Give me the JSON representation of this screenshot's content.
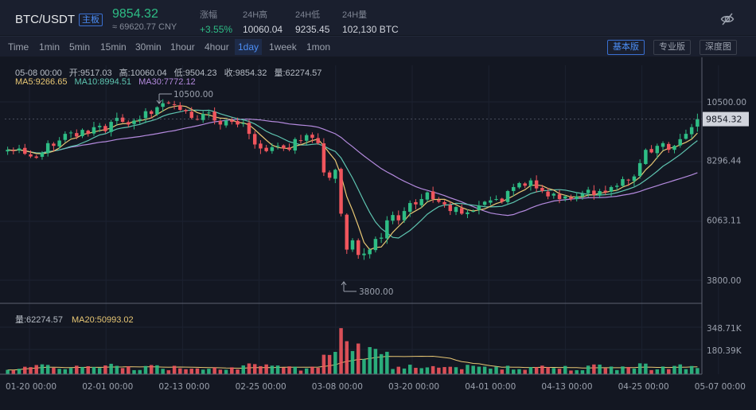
{
  "header": {
    "pair": "BTC/USDT",
    "tag": "主板",
    "price": "9854.32",
    "cny": "≈ 69620.77 CNY",
    "stats": [
      {
        "label": "涨幅",
        "value": "+3.55%",
        "up": true
      },
      {
        "label": "24H高",
        "value": "10060.04",
        "up": false
      },
      {
        "label": "24H低",
        "value": "9235.45",
        "up": false
      },
      {
        "label": "24H量",
        "value": "102,130 BTC",
        "up": false
      }
    ],
    "eye_icon": "eye-off-icon"
  },
  "toolbar": {
    "timeframes": [
      "Time",
      "1min",
      "5min",
      "15min",
      "30min",
      "1hour",
      "4hour",
      "1day",
      "1week",
      "1mon"
    ],
    "active": "1day",
    "views": [
      "基本版",
      "专业版",
      "深度图"
    ],
    "active_view": "基本版"
  },
  "info": {
    "date": "05-08 00:00",
    "open": "开:9517.03",
    "high": "高:10060.04",
    "low": "低:9504.23",
    "close": "收:9854.32",
    "vol": "量:62274.57",
    "ma5": "MA5:9266.65",
    "ma10": "MA10:8994.51",
    "ma30": "MA30:7772.12",
    "vol_label": "量:62274.57",
    "vol_ma": "MA20:50993.02"
  },
  "colors": {
    "up": "#2ebd85",
    "down": "#f0555d",
    "ma5": "#e8c774",
    "ma10": "#5ec4b0",
    "ma30": "#b48ade",
    "vol_ma": "#e8c774"
  },
  "chart_data": {
    "type": "candlestick",
    "y_ticks": [
      10500,
      8296.44,
      6063.11,
      3800
    ],
    "y_tick_labels": [
      "10500.00",
      "8296.44",
      "6063.11",
      "3800.00"
    ],
    "volume_ticks_labels": [
      "348.71K",
      "180.39K"
    ],
    "volume_ticks": [
      348710,
      180390
    ],
    "x_labels": [
      "01-20 00:00",
      "02-01 00:00",
      "02-13 00:00",
      "02-25 00:00",
      "03-08 00:00",
      "03-20 00:00",
      "04-01 00:00",
      "04-13 00:00",
      "04-25 00:00",
      "05-07 00:00"
    ],
    "last_price": "9854.32",
    "high_annotation": "10500.00",
    "low_annotation": "3800.00",
    "closes": [
      8700,
      8650,
      8750,
      8550,
      8450,
      8400,
      8600,
      8950,
      8850,
      9050,
      9300,
      9350,
      9200,
      9450,
      9300,
      9550,
      9600,
      9400,
      9750,
      9900,
      9750,
      9650,
      9800,
      9850,
      10150,
      10050,
      10300,
      10450,
      10450,
      10400,
      10200,
      10150,
      9900,
      9850,
      10050,
      10100,
      9800,
      9650,
      9800,
      9750,
      9650,
      9700,
      9300,
      8900,
      8750,
      8650,
      8800,
      8850,
      8750,
      8700,
      9100,
      9050,
      9250,
      9150,
      8950,
      7850,
      7650,
      7950,
      6300,
      4950,
      5300,
      4750,
      4800,
      4950,
      5350,
      5400,
      6050,
      6250,
      6050,
      6400,
      6700,
      6650,
      6850,
      7100,
      6850,
      6750,
      6650,
      6400,
      6550,
      6300,
      6350,
      6400,
      6600,
      6750,
      6800,
      6850,
      6750,
      7150,
      7300,
      7450,
      7350,
      7550,
      7250,
      7150,
      6950,
      7050,
      6850,
      6950,
      6850,
      6950,
      7050,
      7200,
      7000,
      7150,
      7100,
      7300,
      7350,
      7600,
      7550,
      7700,
      8200,
      8700,
      8600,
      8850,
      8950,
      8700,
      8850,
      9100,
      9300,
      9550,
      9854.32
    ],
    "ma5_last": 9266.65,
    "ma10_last": 8994.51,
    "ma30_last": 7772.12,
    "volume_last": 62274.57,
    "volume_ma20_last": 50993.02
  }
}
